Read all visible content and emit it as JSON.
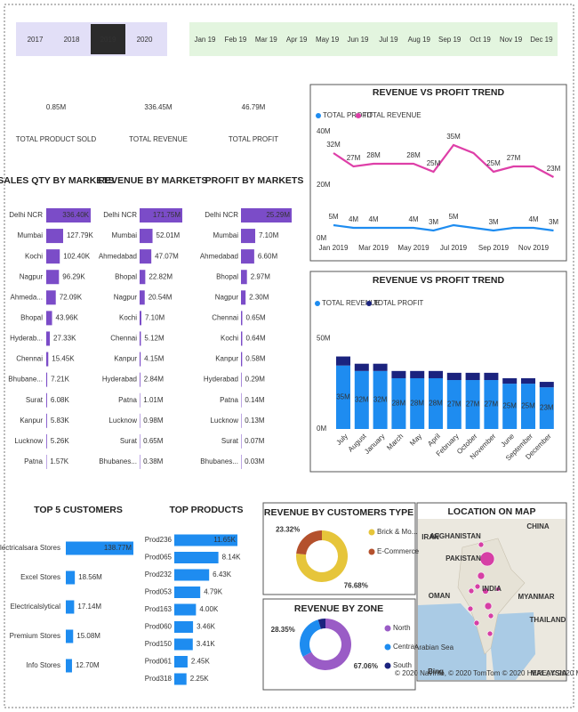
{
  "year_slicer": {
    "options": [
      "2017",
      "2018",
      "2019",
      "2020"
    ],
    "selected": 2
  },
  "month_slicer": {
    "options": [
      "Jan 19",
      "Feb 19",
      "Mar 19",
      "Apr 19",
      "May 19",
      "Jun 19",
      "Jul 19",
      "Aug 19",
      "Sep 19",
      "Oct 19",
      "Nov 19",
      "Dec 19"
    ]
  },
  "kpis": [
    {
      "value": "0.85M",
      "label": "TOTAL PRODUCT SOLD"
    },
    {
      "value": "336.45M",
      "label": "TOTAL REVENUE"
    },
    {
      "value": "46.79M",
      "label": "TOTAL PROFIT"
    }
  ],
  "chart_data": [
    {
      "type": "hbar",
      "title": "SALES QTY BY MARKETS",
      "color": "#7b4cc8",
      "categories": [
        "Delhi NCR",
        "Mumbai",
        "Kochi",
        "Nagpur",
        "Ahmeda...",
        "Bhopal",
        "Hyderab...",
        "Chennai",
        "Bhubane...",
        "Surat",
        "Kanpur",
        "Lucknow",
        "Patna"
      ],
      "values": [
        336.4,
        127.79,
        102.4,
        96.29,
        72.09,
        43.96,
        27.33,
        15.45,
        7.21,
        6.08,
        5.83,
        5.26,
        1.57
      ],
      "value_labels": [
        "336.40K",
        "127.79K",
        "102.40K",
        "96.29K",
        "72.09K",
        "43.96K",
        "27.33K",
        "15.45K",
        "7.21K",
        "6.08K",
        "5.83K",
        "5.26K",
        "1.57K"
      ]
    },
    {
      "type": "hbar",
      "title": "REVENUE BY MARKETS",
      "color": "#7b4cc8",
      "categories": [
        "Delhi NCR",
        "Mumbai",
        "Ahmedabad",
        "Bhopal",
        "Nagpur",
        "Kochi",
        "Chennai",
        "Kanpur",
        "Hyderabad",
        "Patna",
        "Lucknow",
        "Surat",
        "Bhubanes..."
      ],
      "values": [
        171.75,
        52.01,
        47.07,
        22.82,
        20.54,
        7.1,
        5.12,
        4.15,
        2.84,
        1.01,
        0.98,
        0.65,
        0.38
      ],
      "value_labels": [
        "171.75M",
        "52.01M",
        "47.07M",
        "22.82M",
        "20.54M",
        "7.10M",
        "5.12M",
        "4.15M",
        "2.84M",
        "1.01M",
        "0.98M",
        "0.65M",
        "0.38M"
      ]
    },
    {
      "type": "hbar",
      "title": "PROFIT BY MARKETS",
      "color": "#7b4cc8",
      "categories": [
        "Delhi NCR",
        "Mumbai",
        "Ahmedabad",
        "Bhopal",
        "Nagpur",
        "Chennai",
        "Kochi",
        "Kanpur",
        "Hyderabad",
        "Patna",
        "Lucknow",
        "Surat",
        "Bhubanes..."
      ],
      "values": [
        25.29,
        7.1,
        6.6,
        2.97,
        2.3,
        0.65,
        0.64,
        0.58,
        0.29,
        0.14,
        0.13,
        0.07,
        0.03
      ],
      "value_labels": [
        "25.29M",
        "7.10M",
        "6.60M",
        "2.97M",
        "2.30M",
        "0.65M",
        "0.64M",
        "0.58M",
        "0.29M",
        "0.14M",
        "0.13M",
        "0.07M",
        "0.03M"
      ]
    },
    {
      "type": "line",
      "title": "REVENUE VS PROFIT TREND",
      "categories": [
        "Jan 2019",
        null,
        "Mar 2019",
        null,
        "May 2019",
        null,
        "Jul 2019",
        null,
        "Sep 2019",
        null,
        "Nov 2019",
        null
      ],
      "ylim": [
        0,
        40
      ],
      "yticks": [
        {
          "value": 0,
          "label": "0M"
        },
        {
          "value": 20,
          "label": "20M"
        },
        {
          "value": 40,
          "label": "40M"
        }
      ],
      "series": [
        {
          "name": "TOTAL PROFIT",
          "color": "#1e8cf0",
          "values": [
            5,
            4,
            4,
            4,
            4,
            3,
            5,
            4,
            3,
            4,
            4,
            3
          ],
          "value_labels": [
            "5M",
            "4M",
            "4M",
            null,
            "4M",
            "3M",
            "5M",
            null,
            "3M",
            null,
            "4M",
            "3M"
          ]
        },
        {
          "name": "TOTAL REVENUE",
          "color": "#de3fa8",
          "values": [
            32,
            27,
            28,
            28,
            28,
            25,
            35,
            32,
            25,
            27,
            27,
            23
          ],
          "value_labels": [
            "32M",
            "27M",
            "28M",
            null,
            "28M",
            "25M",
            "35M",
            null,
            "25M",
            "27M",
            null,
            "23M"
          ]
        }
      ]
    },
    {
      "type": "stacked-bar",
      "title": "REVENUE VS PROFIT TREND",
      "categories": [
        "July",
        "August",
        "January",
        "March",
        "May",
        "April",
        "February",
        "October",
        "November",
        "June",
        "September",
        "December"
      ],
      "ylim": [
        0,
        55
      ],
      "yticks": [
        {
          "value": 0,
          "label": "0M"
        },
        {
          "value": 50,
          "label": "50M"
        }
      ],
      "series": [
        {
          "name": "TOTAL REVENUE",
          "color": "#1e8cf0",
          "values": [
            35,
            32,
            32,
            28,
            28,
            28,
            27,
            27,
            27,
            25,
            25,
            23
          ],
          "value_labels": [
            "35M",
            "32M",
            "32M",
            "28M",
            "28M",
            "28M",
            "27M",
            "27M",
            "27M",
            "25M",
            "25M",
            "23M"
          ]
        },
        {
          "name": "TOTAL PROFIT",
          "color": "#1b237e",
          "values": [
            5,
            4,
            4,
            4,
            4,
            4,
            4,
            4,
            4,
            3,
            3,
            3
          ]
        }
      ]
    },
    {
      "type": "hbar",
      "title": "TOP 5 CUSTOMERS",
      "color": "#1e8cf0",
      "categories": [
        "Electricalsara Stores",
        "Excel Stores",
        "Electricalslytical",
        "Premium Stores",
        "Info Stores"
      ],
      "values": [
        138.77,
        18.56,
        17.14,
        15.08,
        12.7
      ],
      "value_labels": [
        "138.77M",
        "18.56M",
        "17.14M",
        "15.08M",
        "12.70M"
      ]
    },
    {
      "type": "hbar",
      "title": "TOP PRODUCTS",
      "color": "#1e8cf0",
      "categories": [
        "Prod236",
        "Prod065",
        "Prod232",
        "Prod053",
        "Prod163",
        "Prod060",
        "Prod150",
        "Prod061",
        "Prod318"
      ],
      "values": [
        11.65,
        8.14,
        6.43,
        4.79,
        4.0,
        3.46,
        3.41,
        2.45,
        2.25
      ],
      "value_labels": [
        "11.65K",
        "8.14K",
        "6.43K",
        "4.79K",
        "4.00K",
        "3.46K",
        "3.41K",
        "2.45K",
        "2.25K"
      ]
    },
    {
      "type": "donut",
      "title": "REVENUE BY CUSTOMERS TYPE",
      "categories": [
        "Brick & Mo...",
        "E-Commerce"
      ],
      "colors": [
        "#e6c53a",
        "#b4512d"
      ],
      "values": [
        76.68,
        23.32
      ],
      "value_labels": [
        "76.68%",
        "23.32%"
      ]
    },
    {
      "type": "donut",
      "title": "REVENUE BY ZONE",
      "categories": [
        "North",
        "Central",
        "South"
      ],
      "colors": [
        "#9a5cc6",
        "#1e8cf0",
        "#1b237e"
      ],
      "values": [
        67.06,
        28.35,
        4.59
      ],
      "value_labels": [
        "67.06%",
        "28.35%",
        null
      ]
    }
  ],
  "map": {
    "title": "LOCATION ON MAP",
    "labels": [
      "CHINA",
      "AFGHANISTAN",
      "IRAN",
      "PAKISTAN",
      "INDIA",
      "OMAN",
      "MYANMAR",
      "THAILAND",
      "Arabian Sea",
      "MALAYSIA",
      "Bing",
      "© 2020 NavInfo, © 2020 TomTom © 2020 HERE, © 2020 Microsoft"
    ]
  }
}
